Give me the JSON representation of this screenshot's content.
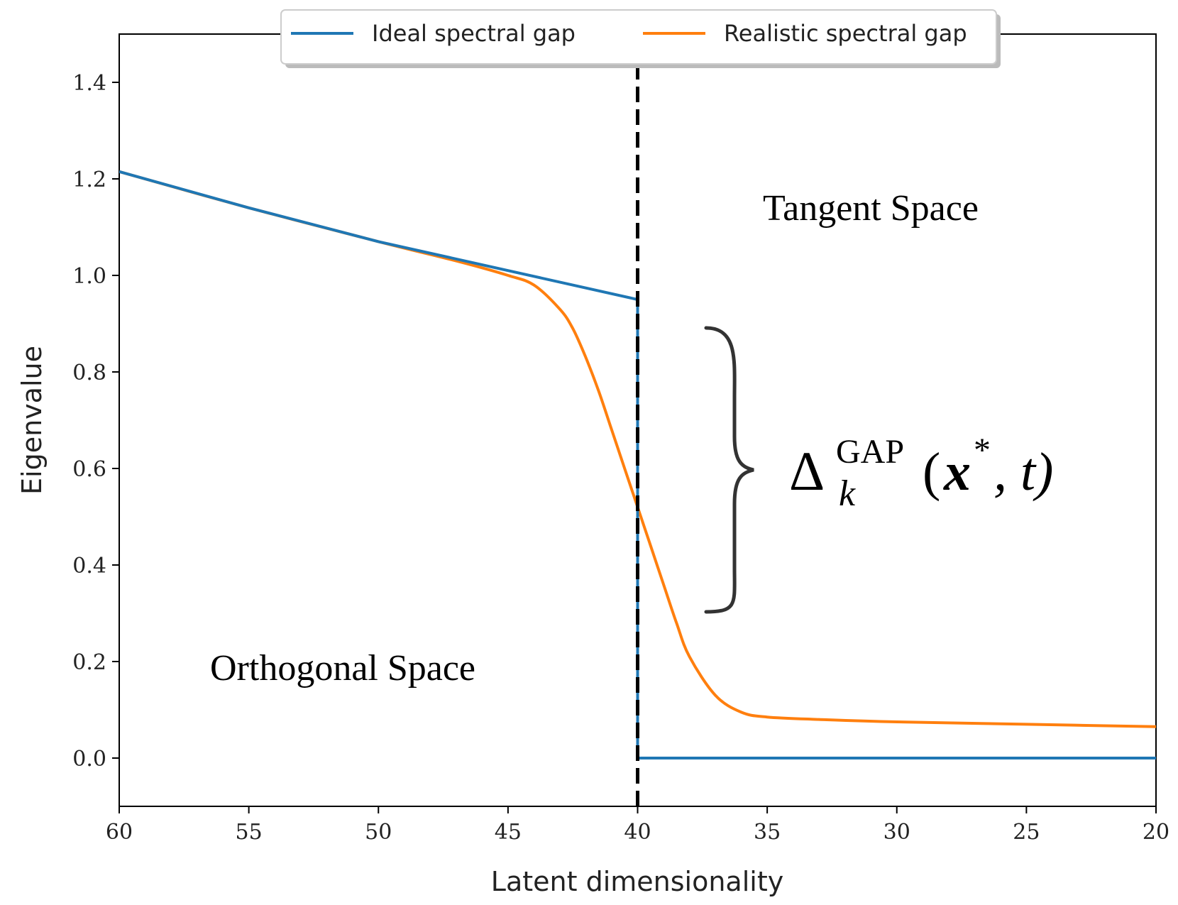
{
  "chart_data": {
    "type": "line",
    "title": "",
    "xlabel": "Latent dimensionality",
    "ylabel": "Eigenvalue",
    "xlim": [
      60,
      20
    ],
    "ylim": [
      -0.1,
      1.5
    ],
    "x_reversed": true,
    "grid": false,
    "legend_position": "top-center",
    "xticks": [
      "60",
      "55",
      "50",
      "45",
      "40",
      "35",
      "30",
      "25",
      "20"
    ],
    "yticks": [
      "0.0",
      "0.2",
      "0.4",
      "0.6",
      "0.8",
      "1.0",
      "1.2",
      "1.4"
    ],
    "colors": {
      "ideal": "#1f77b4",
      "realistic": "#ff7f0e",
      "threshold": "#000000"
    },
    "series": [
      {
        "name": "Ideal spectral gap",
        "color": "#1f77b4",
        "x": [
          60,
          55,
          50,
          45,
          40,
          40,
          35,
          30,
          25,
          20
        ],
        "values": [
          1.215,
          1.14,
          1.07,
          1.01,
          0.95,
          0.0,
          0.0,
          0.0,
          0.0,
          0.0
        ]
      },
      {
        "name": "Realistic spectral gap",
        "color": "#ff7f0e",
        "x": [
          60,
          55,
          50,
          47,
          45,
          44,
          43,
          42.5,
          42,
          41.5,
          41,
          40.5,
          40,
          39.5,
          39,
          38.5,
          38,
          37,
          36,
          35,
          33,
          30,
          25,
          20
        ],
        "values": [
          1.215,
          1.14,
          1.07,
          1.03,
          1.0,
          0.98,
          0.93,
          0.89,
          0.83,
          0.76,
          0.68,
          0.6,
          0.52,
          0.44,
          0.36,
          0.28,
          0.21,
          0.13,
          0.095,
          0.085,
          0.08,
          0.075,
          0.07,
          0.065
        ]
      }
    ],
    "vline": {
      "x": 40,
      "style": "dashed"
    },
    "annotations": {
      "tangent": "Tangent Space",
      "orthogonal": "Orthogonal Space",
      "gap_symbol": "Δ",
      "gap_sub": "k",
      "gap_sup": "GAP",
      "gap_args_open": "(",
      "gap_x": "x",
      "gap_star": "*",
      "gap_rest": ", t)"
    }
  }
}
